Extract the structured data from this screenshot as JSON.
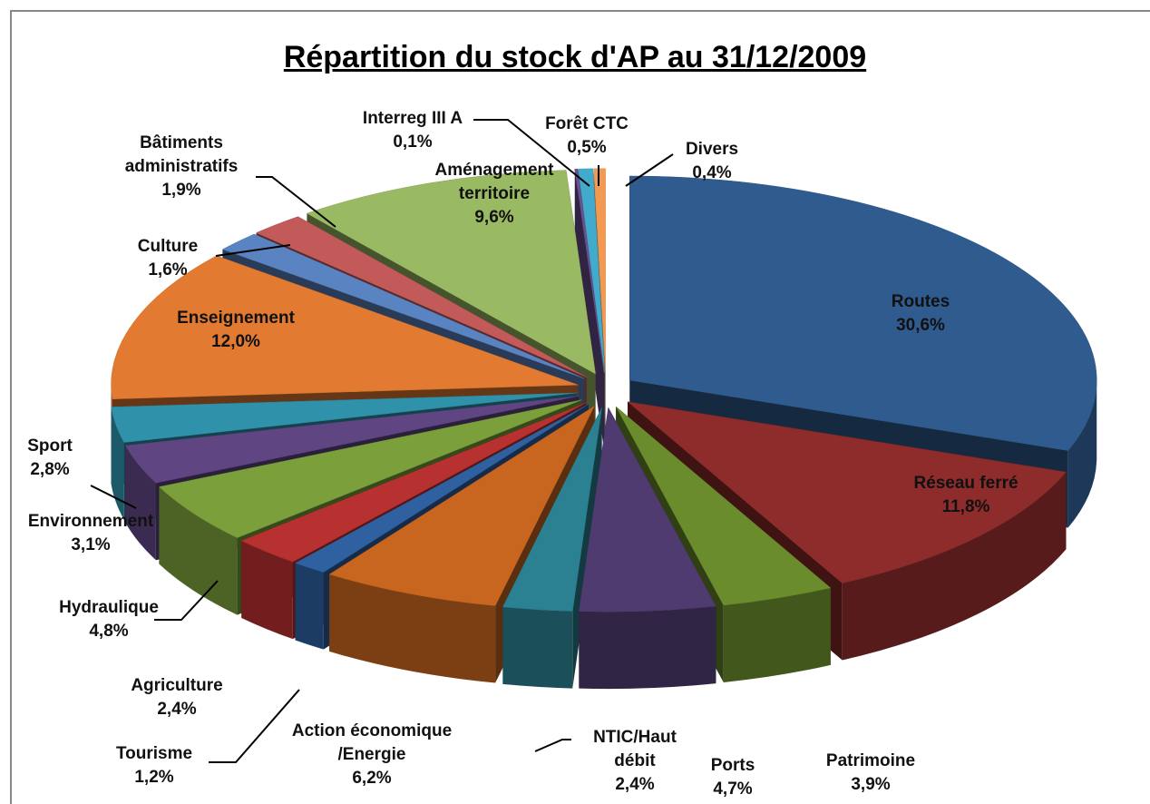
{
  "chart_data": {
    "type": "pie",
    "title": "Répartition du stock d'AP au 31/12/2009",
    "categories": [
      "Routes",
      "Réseau ferré",
      "Patrimoine",
      "Ports",
      "NTIC/Haut débit",
      "Action économique /Energie",
      "Tourisme",
      "Agriculture",
      "Hydraulique",
      "Environnement",
      "Sport",
      "Enseignement",
      "Culture",
      "Bâtiments administratifs",
      "Aménagement territoire",
      "Interreg III A",
      "Forêt CTC",
      "Divers"
    ],
    "values": [
      30.6,
      11.8,
      3.9,
      4.7,
      2.4,
      6.2,
      1.2,
      2.4,
      4.8,
      3.1,
      2.8,
      12.0,
      1.6,
      1.9,
      9.6,
      0.1,
      0.5,
      0.4
    ],
    "value_labels": [
      "30,6%",
      "11,8%",
      "3,9%",
      "4,7%",
      "2,4%",
      "6,2%",
      "1,2%",
      "2,4%",
      "4,8%",
      "3,1%",
      "2,8%",
      "12,0%",
      "1,6%",
      "1,9%",
      "9,6%",
      "0,1%",
      "0,5%",
      "0,4%"
    ],
    "colors": [
      "#2f5b8f",
      "#8e2b2b",
      "#6b8c2c",
      "#4f3b70",
      "#2b8191",
      "#c8661f",
      "#2f60a0",
      "#b83131",
      "#7a9f3b",
      "#5f4682",
      "#2f91aa",
      "#e27a31",
      "#5a83c2",
      "#c25a5a",
      "#99ba62",
      "#6a5192",
      "#42aacb",
      "#f29a52"
    ]
  }
}
